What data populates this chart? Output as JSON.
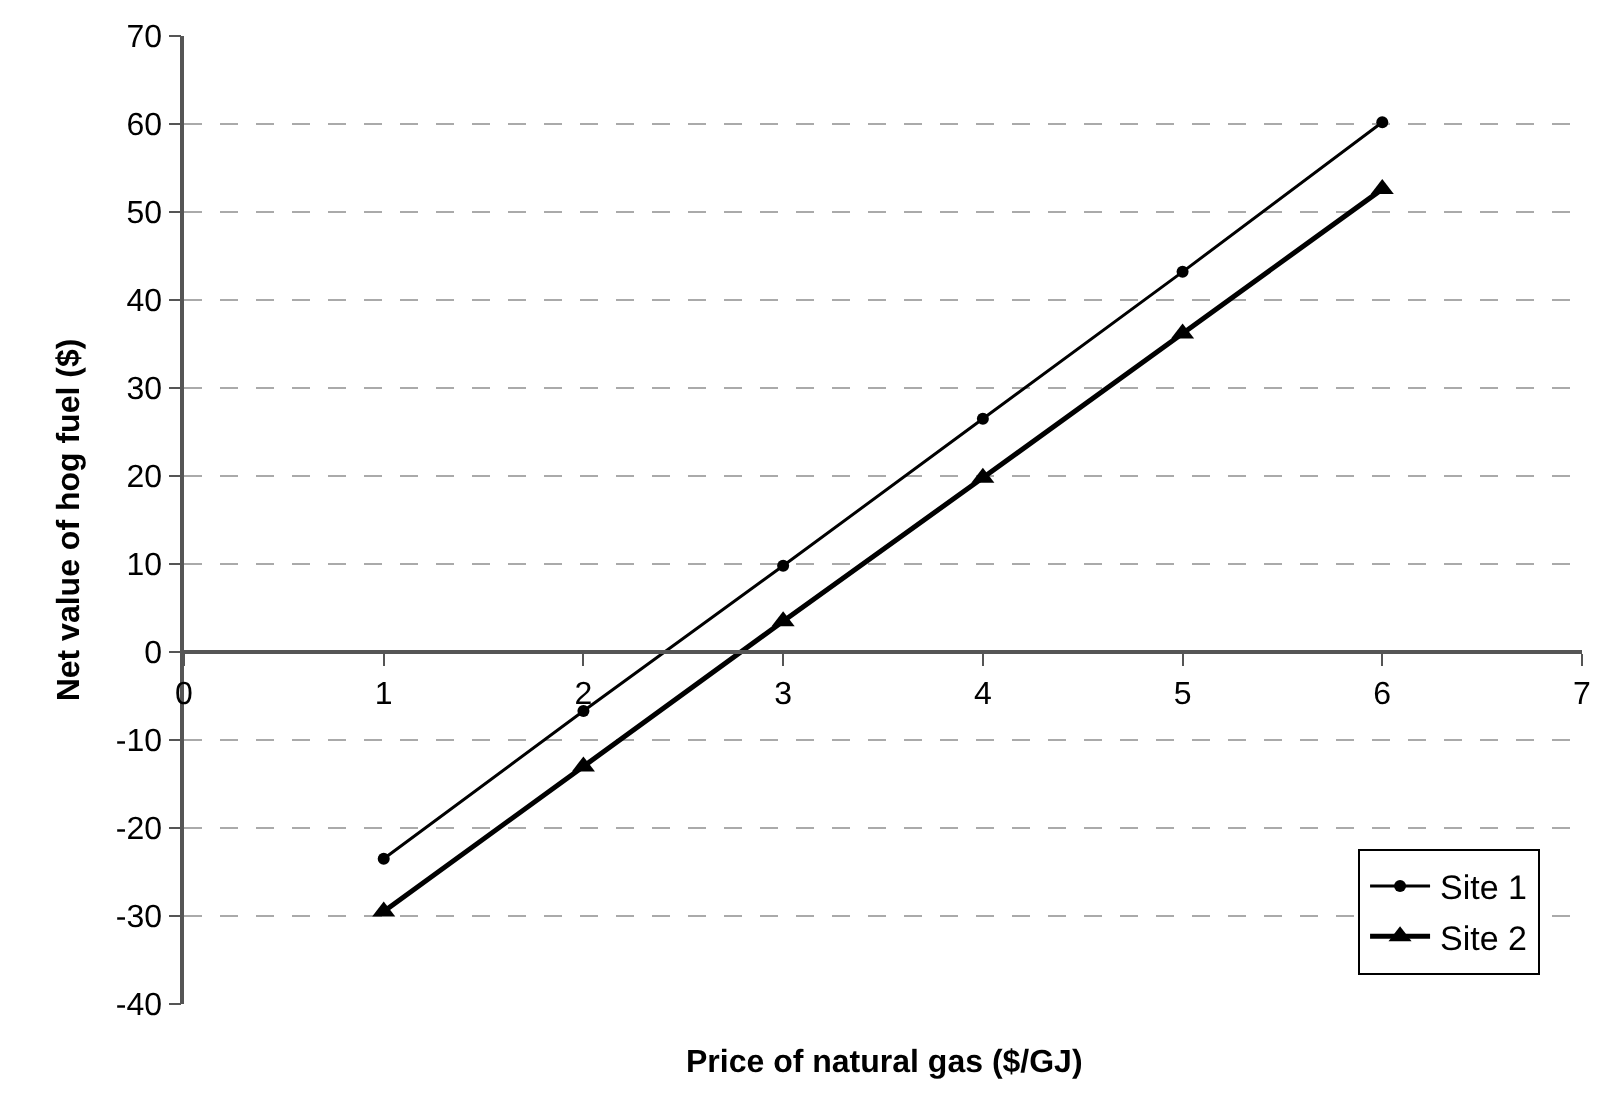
{
  "chart_data": {
    "type": "line",
    "xlabel": "Price of natural gas ($/GJ)",
    "ylabel": "Net value of hog fuel ($)",
    "x": [
      1,
      2,
      3,
      4,
      5,
      6
    ],
    "series": [
      {
        "name": "Site 1",
        "color": "#000000",
        "marker": "circle",
        "values": [
          -23.5,
          -6.7,
          9.8,
          26.5,
          43.2,
          60.2
        ]
      },
      {
        "name": "Site 2",
        "color": "#000000",
        "marker": "triangle",
        "values": [
          -29.5,
          -13,
          3.5,
          19.8,
          36.2,
          52.6
        ]
      }
    ],
    "xlim": [
      0,
      7
    ],
    "xticks": [
      0,
      1,
      2,
      3,
      4,
      5,
      6,
      7
    ],
    "ylim": [
      -40,
      70
    ],
    "yticks": [
      -40,
      -30,
      -20,
      -10,
      0,
      10,
      20,
      30,
      40,
      50,
      60,
      70
    ],
    "grid": "y",
    "legend": "bottom right",
    "line_style": "solid"
  }
}
